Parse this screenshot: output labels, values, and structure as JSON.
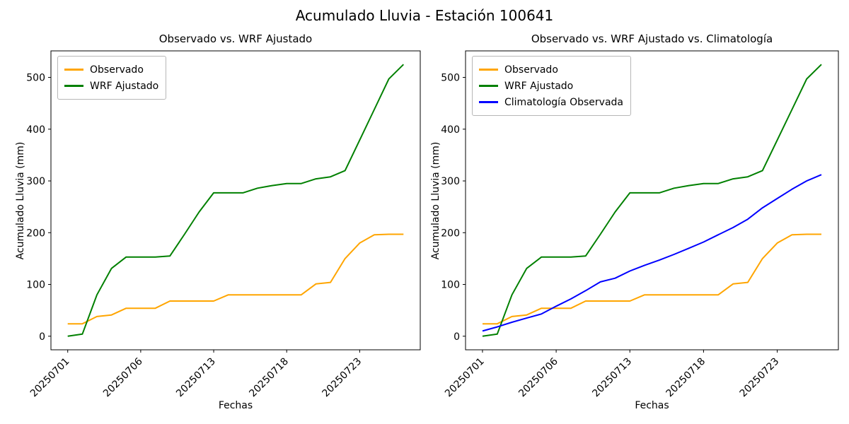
{
  "figure": {
    "title": "Acumulado Lluvia - Estación 100641"
  },
  "colors": {
    "observado": "#FFA500",
    "wrf_ajustado": "#008000",
    "climatologia": "#0000FF",
    "axes": "#000000",
    "legend_border": "#b7b7b7"
  },
  "chart_data": [
    {
      "type": "line",
      "title": "Observado vs. WRF Ajustado",
      "xlabel": "Fechas",
      "ylabel": "Acumulado Lluvia (mm)",
      "n_points": 24,
      "x_tick_indices": [
        0,
        5,
        10,
        15,
        20
      ],
      "x_tick_labels": [
        "20250701",
        "20250706",
        "20250713",
        "20250718",
        "20250723"
      ],
      "yticks": [
        0,
        100,
        200,
        300,
        400,
        500
      ],
      "ylim": [
        0,
        525
      ],
      "grid": false,
      "legend_position": "upper-left",
      "series": [
        {
          "name": "Observado",
          "color": "#FFA500",
          "values": [
            24,
            24,
            38,
            41,
            54,
            54,
            54,
            68,
            68,
            68,
            68,
            80,
            80,
            80,
            80,
            80,
            80,
            101,
            104,
            150,
            180,
            196,
            197,
            197
          ]
        },
        {
          "name": "WRF Ajustado",
          "color": "#008000",
          "values": [
            0,
            4,
            80,
            131,
            153,
            153,
            153,
            155,
            197,
            240,
            277,
            277,
            277,
            286,
            291,
            295,
            295,
            304,
            308,
            320,
            379,
            438,
            497,
            525
          ]
        }
      ]
    },
    {
      "type": "line",
      "title": "Observado vs. WRF Ajustado vs. Climatología",
      "xlabel": "Fechas",
      "ylabel": "Acumulado Lluvia (mm)",
      "n_points": 24,
      "x_tick_indices": [
        0,
        5,
        10,
        15,
        20
      ],
      "x_tick_labels": [
        "20250701",
        "20250706",
        "20250713",
        "20250718",
        "20250723"
      ],
      "yticks": [
        0,
        100,
        200,
        300,
        400,
        500
      ],
      "ylim": [
        0,
        525
      ],
      "grid": false,
      "legend_position": "upper-left",
      "series": [
        {
          "name": "Observado",
          "color": "#FFA500",
          "values": [
            24,
            24,
            38,
            41,
            54,
            54,
            54,
            68,
            68,
            68,
            68,
            80,
            80,
            80,
            80,
            80,
            80,
            101,
            104,
            150,
            180,
            196,
            197,
            197
          ]
        },
        {
          "name": "WRF Ajustado",
          "color": "#008000",
          "values": [
            0,
            4,
            80,
            131,
            153,
            153,
            153,
            155,
            197,
            240,
            277,
            277,
            277,
            286,
            291,
            295,
            295,
            304,
            308,
            320,
            379,
            438,
            497,
            525
          ]
        },
        {
          "name": "Climatología Observada",
          "color": "#0000FF",
          "values": [
            10,
            18,
            27,
            35,
            43,
            58,
            72,
            88,
            105,
            112,
            126,
            137,
            147,
            158,
            170,
            182,
            196,
            210,
            226,
            248,
            266,
            284,
            300,
            312
          ]
        }
      ]
    }
  ]
}
